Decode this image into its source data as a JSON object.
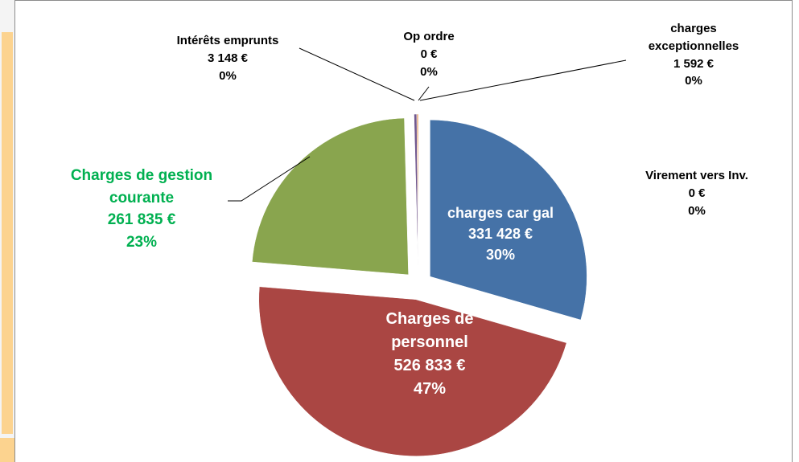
{
  "chart_data": {
    "type": "pie",
    "categories": [
      "charges car gal",
      "Charges de personnel",
      "Charges de gestion courante",
      "Intérêts emprunts",
      "Op ordre",
      "charges exceptionnelles",
      "Virement vers Inv."
    ],
    "values": [
      331428,
      526833,
      261835,
      3148,
      0,
      1592,
      0
    ],
    "value_labels": [
      "331 428 €",
      "526 833 €",
      "261 835 €",
      "3 148 €",
      "0 €",
      "1 592 €",
      "0 €"
    ],
    "percent_labels": [
      "30%",
      "47%",
      "23%",
      "0%",
      "0%",
      "0%",
      "0%"
    ],
    "colors": [
      "#4572a7",
      "#aa4643",
      "#89a54e",
      "#71588f",
      "#4198af",
      "#db843d",
      "#93a9cf"
    ]
  }
}
